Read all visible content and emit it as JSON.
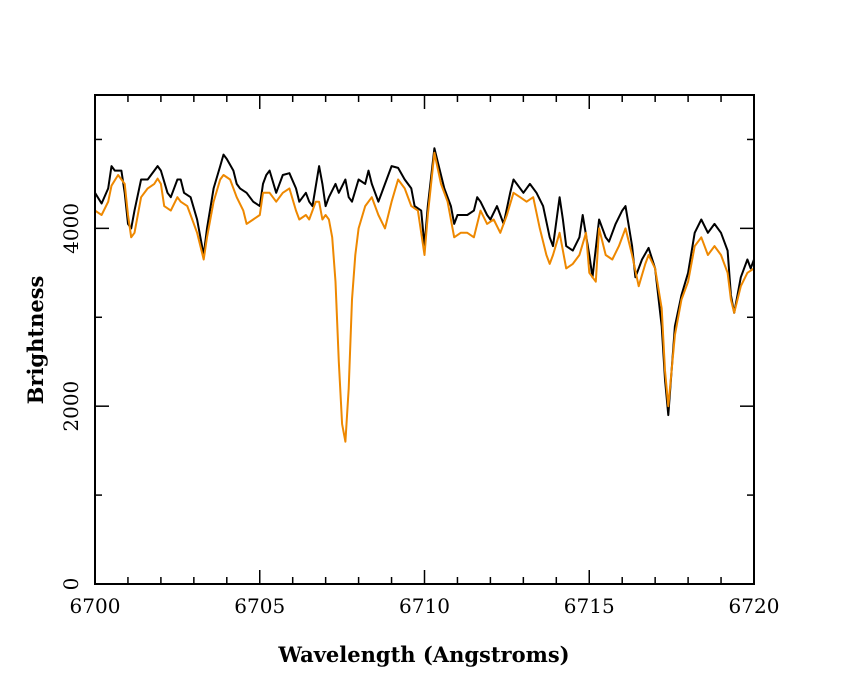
{
  "chart_data": {
    "type": "line",
    "title": "",
    "xlabel": "Wavelength (Angstroms)",
    "ylabel": "Brightness",
    "xlim": [
      6700,
      6720
    ],
    "ylim": [
      0,
      5500
    ],
    "x_ticks": [
      6700,
      6705,
      6710,
      6715,
      6720
    ],
    "y_ticks": [
      0,
      2000,
      4000
    ],
    "x_tick_labels": [
      "6700",
      "6705",
      "6710",
      "6715",
      "6720"
    ],
    "y_tick_labels": [
      "0",
      "2000",
      "4000"
    ],
    "x_minor_step": 1,
    "y_minor_step": 1000,
    "grid": false,
    "legend": "none",
    "series": [
      {
        "color": "#000000",
        "points": [
          [
            6700.0,
            4400
          ],
          [
            6700.2,
            4280
          ],
          [
            6700.4,
            4450
          ],
          [
            6700.5,
            4700
          ],
          [
            6700.6,
            4650
          ],
          [
            6700.8,
            4650
          ],
          [
            6700.9,
            4400
          ],
          [
            6701.0,
            4050
          ],
          [
            6701.1,
            4000
          ],
          [
            6701.2,
            4200
          ],
          [
            6701.4,
            4550
          ],
          [
            6701.6,
            4550
          ],
          [
            6701.8,
            4650
          ],
          [
            6701.9,
            4700
          ],
          [
            6702.0,
            4650
          ],
          [
            6702.2,
            4400
          ],
          [
            6702.3,
            4350
          ],
          [
            6702.5,
            4550
          ],
          [
            6702.6,
            4550
          ],
          [
            6702.7,
            4400
          ],
          [
            6702.9,
            4350
          ],
          [
            6703.1,
            4100
          ],
          [
            6703.3,
            3700
          ],
          [
            6703.4,
            4000
          ],
          [
            6703.6,
            4450
          ],
          [
            6703.8,
            4700
          ],
          [
            6703.9,
            4830
          ],
          [
            6704.0,
            4780
          ],
          [
            6704.2,
            4650
          ],
          [
            6704.3,
            4500
          ],
          [
            6704.4,
            4450
          ],
          [
            6704.6,
            4400
          ],
          [
            6704.8,
            4300
          ],
          [
            6705.0,
            4250
          ],
          [
            6705.1,
            4500
          ],
          [
            6705.2,
            4600
          ],
          [
            6705.3,
            4650
          ],
          [
            6705.5,
            4400
          ],
          [
            6705.7,
            4600
          ],
          [
            6705.9,
            4620
          ],
          [
            6706.1,
            4450
          ],
          [
            6706.2,
            4300
          ],
          [
            6706.4,
            4400
          ],
          [
            6706.5,
            4300
          ],
          [
            6706.6,
            4250
          ],
          [
            6706.8,
            4700
          ],
          [
            6706.9,
            4500
          ],
          [
            6707.0,
            4250
          ],
          [
            6707.1,
            4350
          ],
          [
            6707.3,
            4500
          ],
          [
            6707.4,
            4400
          ],
          [
            6707.6,
            4550
          ],
          [
            6707.7,
            4350
          ],
          [
            6707.8,
            4300
          ],
          [
            6708.0,
            4550
          ],
          [
            6708.2,
            4500
          ],
          [
            6708.3,
            4650
          ],
          [
            6708.4,
            4500
          ],
          [
            6708.6,
            4300
          ],
          [
            6708.8,
            4500
          ],
          [
            6709.0,
            4700
          ],
          [
            6709.2,
            4680
          ],
          [
            6709.4,
            4550
          ],
          [
            6709.6,
            4450
          ],
          [
            6709.7,
            4250
          ],
          [
            6709.9,
            4200
          ],
          [
            6710.0,
            3800
          ],
          [
            6710.1,
            4250
          ],
          [
            6710.3,
            4900
          ],
          [
            6710.4,
            4750
          ],
          [
            6710.6,
            4450
          ],
          [
            6710.8,
            4250
          ],
          [
            6710.9,
            4050
          ],
          [
            6711.0,
            4150
          ],
          [
            6711.2,
            4150
          ],
          [
            6711.3,
            4150
          ],
          [
            6711.5,
            4200
          ],
          [
            6711.6,
            4350
          ],
          [
            6711.7,
            4300
          ],
          [
            6711.9,
            4150
          ],
          [
            6712.0,
            4100
          ],
          [
            6712.2,
            4250
          ],
          [
            6712.4,
            4050
          ],
          [
            6712.6,
            4400
          ],
          [
            6712.7,
            4550
          ],
          [
            6712.8,
            4500
          ],
          [
            6713.0,
            4400
          ],
          [
            6713.2,
            4500
          ],
          [
            6713.4,
            4400
          ],
          [
            6713.6,
            4250
          ],
          [
            6713.8,
            3900
          ],
          [
            6713.9,
            3800
          ],
          [
            6714.1,
            4350
          ],
          [
            6714.2,
            4100
          ],
          [
            6714.3,
            3800
          ],
          [
            6714.5,
            3750
          ],
          [
            6714.7,
            3900
          ],
          [
            6714.8,
            4150
          ],
          [
            6715.0,
            3700
          ],
          [
            6715.1,
            3450
          ],
          [
            6715.3,
            4100
          ],
          [
            6715.5,
            3900
          ],
          [
            6715.6,
            3850
          ],
          [
            6715.8,
            4050
          ],
          [
            6716.0,
            4200
          ],
          [
            6716.1,
            4250
          ],
          [
            6716.3,
            3800
          ],
          [
            6716.4,
            3450
          ],
          [
            6716.6,
            3650
          ],
          [
            6716.8,
            3780
          ],
          [
            6717.0,
            3550
          ],
          [
            6717.2,
            2900
          ],
          [
            6717.3,
            2300
          ],
          [
            6717.4,
            1900
          ],
          [
            6717.6,
            2900
          ],
          [
            6717.8,
            3250
          ],
          [
            6718.0,
            3500
          ],
          [
            6718.2,
            3950
          ],
          [
            6718.4,
            4100
          ],
          [
            6718.6,
            3950
          ],
          [
            6718.8,
            4050
          ],
          [
            6719.0,
            3950
          ],
          [
            6719.2,
            3750
          ],
          [
            6719.3,
            3250
          ],
          [
            6719.4,
            3050
          ],
          [
            6719.6,
            3450
          ],
          [
            6719.8,
            3650
          ],
          [
            6719.9,
            3550
          ],
          [
            6720.0,
            3650
          ]
        ]
      },
      {
        "color": "#ee8800",
        "points": [
          [
            6700.0,
            4200
          ],
          [
            6700.2,
            4150
          ],
          [
            6700.4,
            4300
          ],
          [
            6700.5,
            4480
          ],
          [
            6700.7,
            4600
          ],
          [
            6700.9,
            4500
          ],
          [
            6701.0,
            4150
          ],
          [
            6701.1,
            3900
          ],
          [
            6701.2,
            3950
          ],
          [
            6701.4,
            4350
          ],
          [
            6701.6,
            4450
          ],
          [
            6701.8,
            4500
          ],
          [
            6701.9,
            4560
          ],
          [
            6702.0,
            4500
          ],
          [
            6702.1,
            4250
          ],
          [
            6702.3,
            4200
          ],
          [
            6702.5,
            4350
          ],
          [
            6702.6,
            4300
          ],
          [
            6702.8,
            4250
          ],
          [
            6702.9,
            4150
          ],
          [
            6703.1,
            3950
          ],
          [
            6703.3,
            3650
          ],
          [
            6703.4,
            3900
          ],
          [
            6703.6,
            4300
          ],
          [
            6703.8,
            4550
          ],
          [
            6703.9,
            4600
          ],
          [
            6704.1,
            4550
          ],
          [
            6704.3,
            4350
          ],
          [
            6704.5,
            4200
          ],
          [
            6704.6,
            4050
          ],
          [
            6704.8,
            4100
          ],
          [
            6705.0,
            4150
          ],
          [
            6705.1,
            4400
          ],
          [
            6705.3,
            4400
          ],
          [
            6705.5,
            4300
          ],
          [
            6705.7,
            4400
          ],
          [
            6705.9,
            4450
          ],
          [
            6706.1,
            4200
          ],
          [
            6706.2,
            4100
          ],
          [
            6706.4,
            4150
          ],
          [
            6706.5,
            4100
          ],
          [
            6706.7,
            4300
          ],
          [
            6706.8,
            4300
          ],
          [
            6706.9,
            4100
          ],
          [
            6707.0,
            4150
          ],
          [
            6707.1,
            4100
          ],
          [
            6707.2,
            3900
          ],
          [
            6707.3,
            3400
          ],
          [
            6707.4,
            2500
          ],
          [
            6707.5,
            1800
          ],
          [
            6707.6,
            1600
          ],
          [
            6707.7,
            2200
          ],
          [
            6707.8,
            3200
          ],
          [
            6707.9,
            3700
          ],
          [
            6708.0,
            4000
          ],
          [
            6708.2,
            4250
          ],
          [
            6708.4,
            4350
          ],
          [
            6708.6,
            4150
          ],
          [
            6708.8,
            4000
          ],
          [
            6709.0,
            4300
          ],
          [
            6709.2,
            4550
          ],
          [
            6709.4,
            4450
          ],
          [
            6709.6,
            4250
          ],
          [
            6709.8,
            4200
          ],
          [
            6710.0,
            3700
          ],
          [
            6710.1,
            4150
          ],
          [
            6710.3,
            4850
          ],
          [
            6710.5,
            4500
          ],
          [
            6710.7,
            4300
          ],
          [
            6710.9,
            3900
          ],
          [
            6711.1,
            3950
          ],
          [
            6711.3,
            3950
          ],
          [
            6711.5,
            3900
          ],
          [
            6711.7,
            4200
          ],
          [
            6711.9,
            4050
          ],
          [
            6712.1,
            4100
          ],
          [
            6712.3,
            3950
          ],
          [
            6712.5,
            4150
          ],
          [
            6712.7,
            4400
          ],
          [
            6712.9,
            4350
          ],
          [
            6713.1,
            4300
          ],
          [
            6713.3,
            4350
          ],
          [
            6713.5,
            4000
          ],
          [
            6713.7,
            3700
          ],
          [
            6713.8,
            3600
          ],
          [
            6713.9,
            3700
          ],
          [
            6714.1,
            3950
          ],
          [
            6714.2,
            3750
          ],
          [
            6714.3,
            3550
          ],
          [
            6714.5,
            3600
          ],
          [
            6714.7,
            3700
          ],
          [
            6714.9,
            3950
          ],
          [
            6715.0,
            3500
          ],
          [
            6715.2,
            3400
          ],
          [
            6715.3,
            4000
          ],
          [
            6715.5,
            3700
          ],
          [
            6715.7,
            3650
          ],
          [
            6715.9,
            3800
          ],
          [
            6716.1,
            4000
          ],
          [
            6716.3,
            3700
          ],
          [
            6716.5,
            3350
          ],
          [
            6716.7,
            3600
          ],
          [
            6716.8,
            3700
          ],
          [
            6717.0,
            3550
          ],
          [
            6717.2,
            3100
          ],
          [
            6717.3,
            2400
          ],
          [
            6717.4,
            2000
          ],
          [
            6717.6,
            2800
          ],
          [
            6717.8,
            3200
          ],
          [
            6718.0,
            3400
          ],
          [
            6718.2,
            3800
          ],
          [
            6718.4,
            3900
          ],
          [
            6718.6,
            3700
          ],
          [
            6718.8,
            3800
          ],
          [
            6719.0,
            3700
          ],
          [
            6719.2,
            3500
          ],
          [
            6719.3,
            3200
          ],
          [
            6719.4,
            3050
          ],
          [
            6719.6,
            3350
          ],
          [
            6719.8,
            3500
          ],
          [
            6720.0,
            3550
          ]
        ]
      }
    ]
  }
}
